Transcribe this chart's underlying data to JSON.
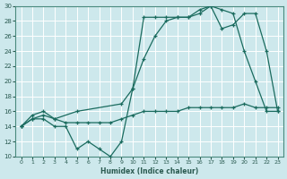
{
  "xlabel": "Humidex (Indice chaleur)",
  "background_color": "#cde8ec",
  "grid_color": "#b0d4d8",
  "line_color": "#1a6b5e",
  "xlim": [
    -0.5,
    23.5
  ],
  "ylim": [
    10,
    30
  ],
  "xticks": [
    0,
    1,
    2,
    3,
    4,
    5,
    6,
    7,
    8,
    9,
    10,
    11,
    12,
    13,
    14,
    15,
    16,
    17,
    18,
    19,
    20,
    21,
    22,
    23
  ],
  "yticks": [
    10,
    12,
    14,
    16,
    18,
    20,
    22,
    24,
    26,
    28,
    30
  ],
  "series1_x": [
    0,
    1,
    2,
    3,
    4,
    5,
    6,
    7,
    8,
    9,
    10,
    11,
    12,
    13,
    14,
    15,
    16,
    17,
    18,
    19,
    20,
    21,
    22,
    23
  ],
  "series1_y": [
    14,
    15,
    15,
    14,
    14,
    11,
    12,
    11,
    10,
    12,
    19,
    28.5,
    28.5,
    28.5,
    28.5,
    28.5,
    29.5,
    30,
    29.5,
    29,
    24,
    20,
    16,
    16
  ],
  "series2_x": [
    0,
    1,
    2,
    3,
    4,
    5,
    6,
    7,
    8,
    9,
    10,
    11,
    12,
    13,
    14,
    15,
    16,
    17,
    18,
    19,
    20,
    21,
    22,
    23
  ],
  "series2_y": [
    14,
    15,
    15.5,
    15,
    14.5,
    14.5,
    14.5,
    14.5,
    14.5,
    15,
    15.5,
    16,
    16,
    16,
    16,
    16.5,
    16.5,
    16.5,
    16.5,
    16.5,
    17,
    16.5,
    16.5,
    16.5
  ],
  "series3_x": [
    0,
    1,
    2,
    3,
    5,
    9,
    10,
    11,
    12,
    13,
    14,
    15,
    16,
    17,
    18,
    19,
    20,
    21,
    22,
    23
  ],
  "series3_y": [
    14,
    15.5,
    16,
    15,
    16,
    17,
    19,
    23,
    26,
    28,
    28.5,
    28.5,
    29,
    30,
    27,
    27.5,
    29,
    29,
    24,
    16
  ]
}
